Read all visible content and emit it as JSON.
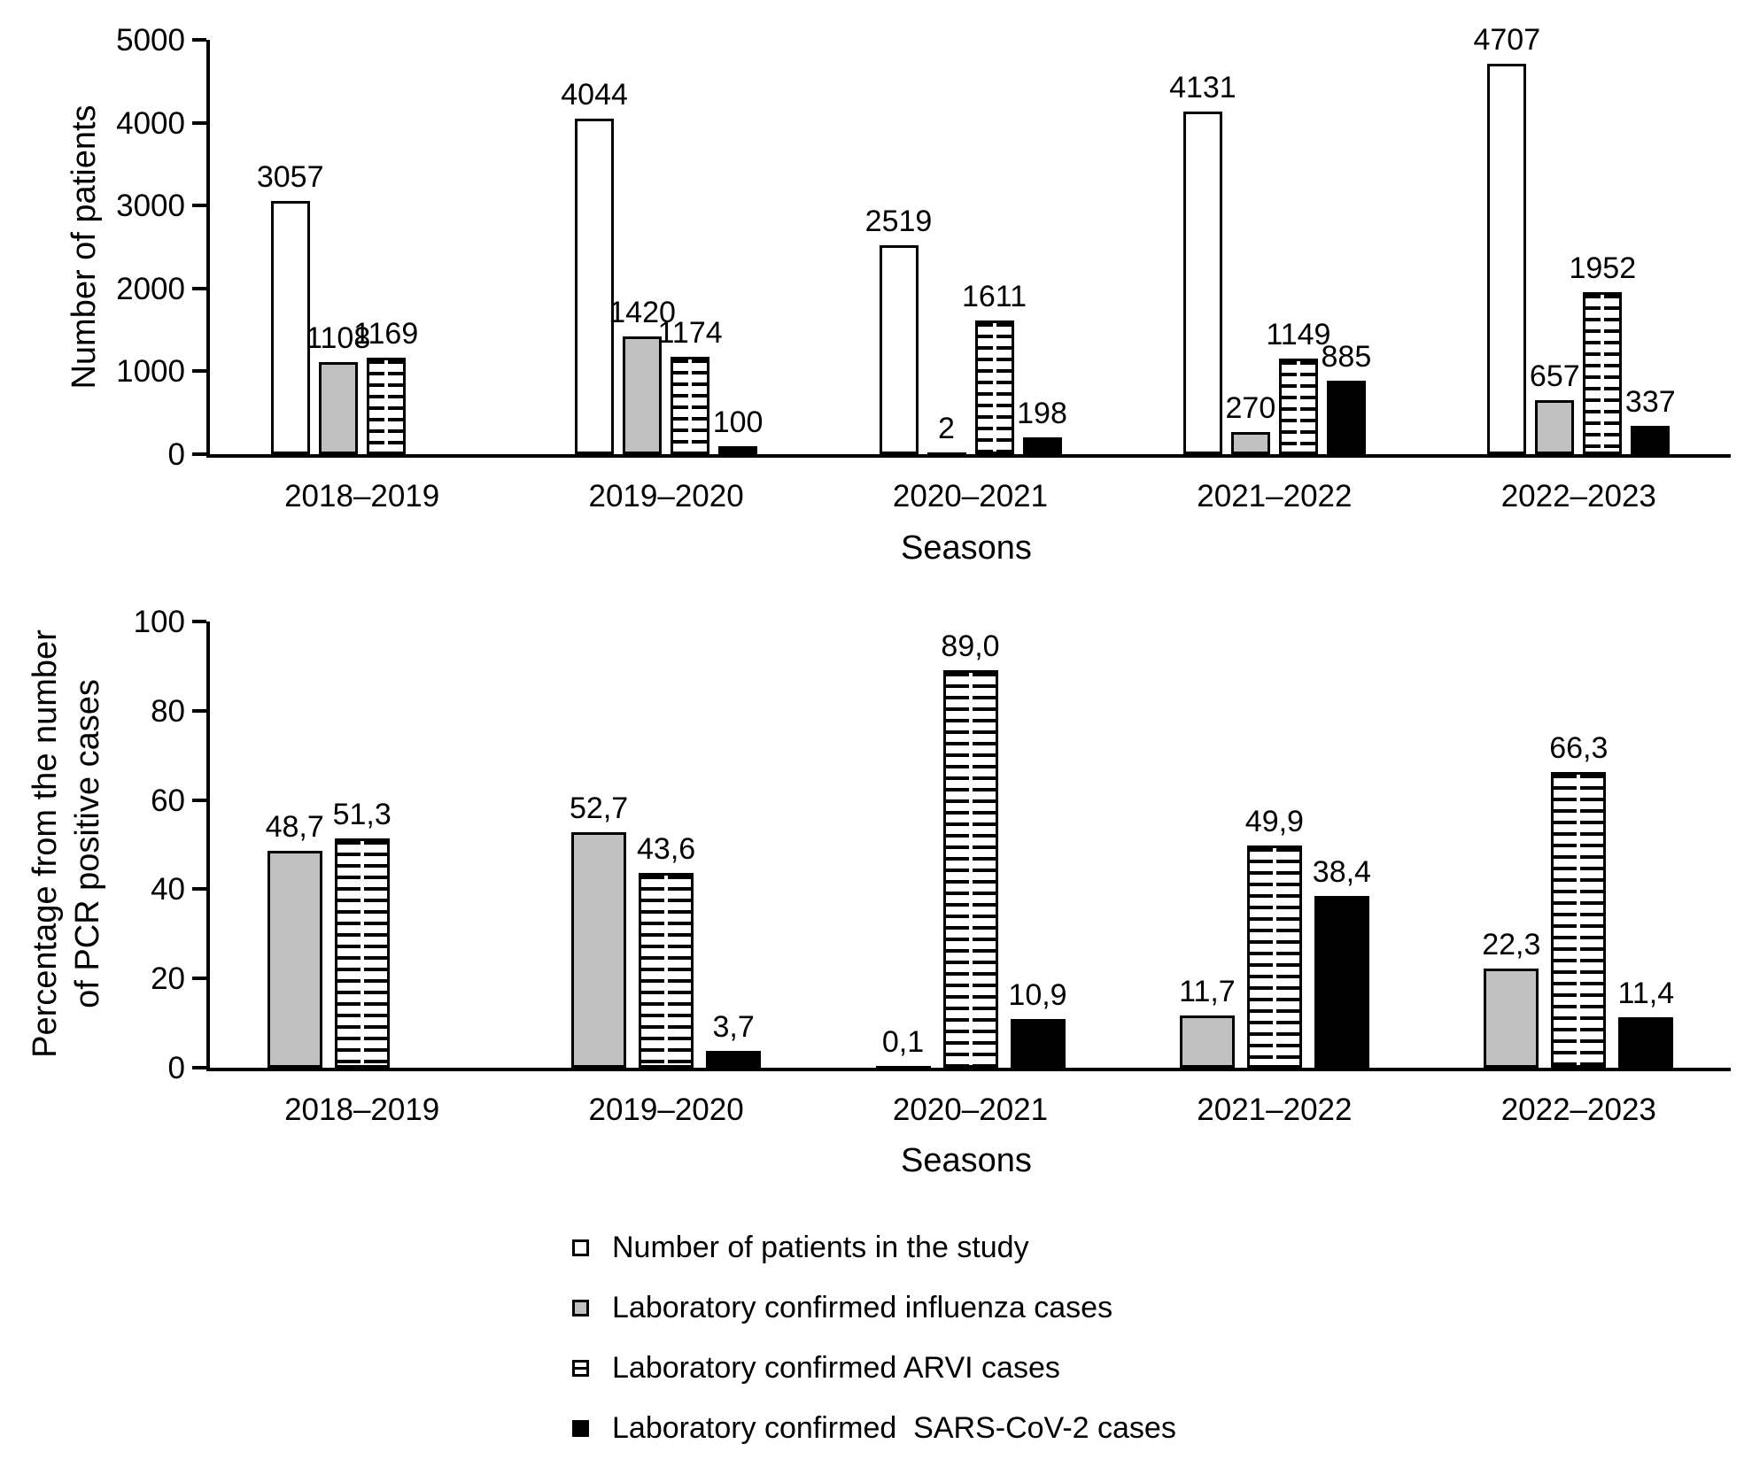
{
  "colors": {
    "bar_white": "#ffffff",
    "bar_gray": "#c0c0c0",
    "bar_black": "#000000",
    "stroke": "#000000",
    "background": "#ffffff"
  },
  "legend": {
    "items": [
      {
        "key": "patients",
        "style": "white",
        "label": "Number of patients in the study"
      },
      {
        "key": "influenza",
        "style": "gray",
        "label": "Laboratory confirmed influenza cases"
      },
      {
        "key": "arvi",
        "style": "striped",
        "label": "Laboratory confirmed ARVI cases"
      },
      {
        "key": "sars",
        "style": "black",
        "label": "Laboratory confirmed  SARS-CoV-2 cases"
      }
    ]
  },
  "chart_data": [
    {
      "type": "bar",
      "ylabel": "Number of patients",
      "xlabel": "Seasons",
      "categories": [
        "2018–2019",
        "2019–2020",
        "2020–2021",
        "2021–2022",
        "2022–2023"
      ],
      "ylim": [
        0,
        5000
      ],
      "yticks": [
        0,
        1000,
        2000,
        3000,
        4000,
        5000
      ],
      "grid": false,
      "legend_position": "below-figure",
      "series": [
        {
          "key": "patients",
          "name": "Number of patients in the study",
          "style": "white",
          "values": [
            3057,
            4044,
            2519,
            4131,
            4707
          ],
          "labels": [
            "3057",
            "4044",
            "2519",
            "4131",
            "4707"
          ]
        },
        {
          "key": "influenza",
          "name": "Laboratory confirmed influenza cases",
          "style": "gray",
          "values": [
            1108,
            1420,
            2,
            270,
            657
          ],
          "labels": [
            "1108",
            "1420",
            "2",
            "270",
            "657"
          ]
        },
        {
          "key": "arvi",
          "name": "Laboratory confirmed ARVI cases",
          "style": "striped",
          "values": [
            1169,
            1174,
            1611,
            1149,
            1952
          ],
          "labels": [
            "1169",
            "1174",
            "1611",
            "1149",
            "1952"
          ]
        },
        {
          "key": "sars",
          "name": "Laboratory confirmed SARS-CoV-2 cases",
          "style": "black",
          "values": [
            null,
            100,
            198,
            885,
            337
          ],
          "labels": [
            "",
            "100",
            "198",
            "885",
            "337"
          ]
        }
      ]
    },
    {
      "type": "bar",
      "ylabel": "Percentage from the number of PCR positive cases",
      "ylabel_lines": [
        "Percentage from the number",
        "of PCR positive cases"
      ],
      "xlabel": "Seasons",
      "categories": [
        "2018–2019",
        "2019–2020",
        "2020–2021",
        "2021–2022",
        "2022–2023"
      ],
      "ylim": [
        0,
        100
      ],
      "yticks": [
        0,
        20,
        40,
        60,
        80,
        100
      ],
      "grid": false,
      "series": [
        {
          "key": "influenza",
          "name": "Laboratory confirmed influenza cases",
          "style": "gray",
          "values": [
            48.7,
            52.7,
            0.1,
            11.7,
            22.3
          ],
          "labels": [
            "48,7",
            "52,7",
            "0,1",
            "11,7",
            "22,3"
          ]
        },
        {
          "key": "arvi",
          "name": "Laboratory confirmed ARVI cases",
          "style": "striped",
          "values": [
            51.3,
            43.6,
            89.0,
            49.9,
            66.3
          ],
          "labels": [
            "51,3",
            "43,6",
            "89,0",
            "49,9",
            "66,3"
          ]
        },
        {
          "key": "sars",
          "name": "Laboratory confirmed SARS-CoV-2 cases",
          "style": "black",
          "values": [
            null,
            3.7,
            10.9,
            38.4,
            11.4
          ],
          "labels": [
            "",
            "3,7",
            "10,9",
            "38,4",
            "11,4"
          ]
        }
      ]
    }
  ]
}
